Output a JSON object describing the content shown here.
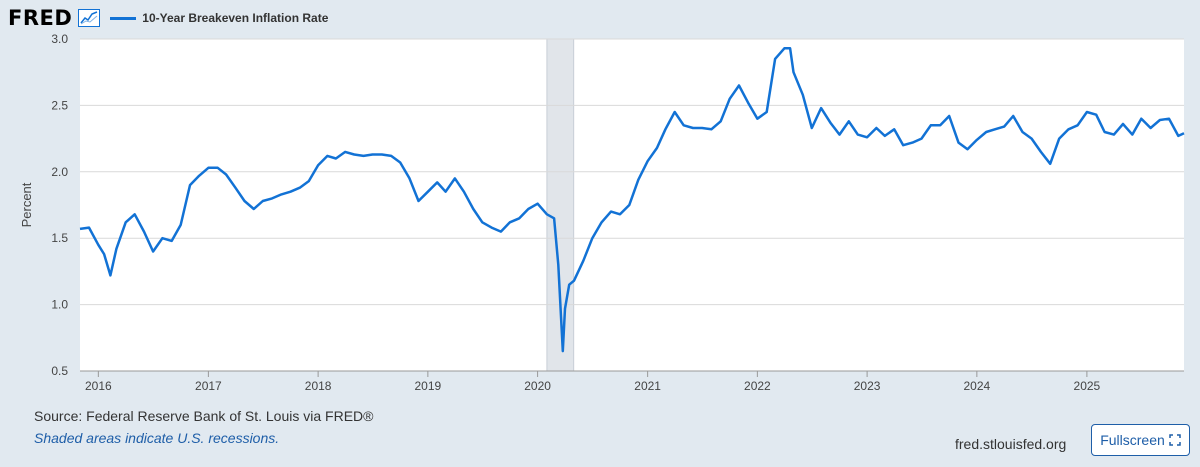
{
  "logo": {
    "text": "FRED"
  },
  "chart_data": {
    "type": "line",
    "title": "",
    "ylabel": "Percent",
    "ylim": [
      0.5,
      3.0
    ],
    "yticks": [
      "0.5",
      "1.0",
      "1.5",
      "2.0",
      "2.5",
      "3.0"
    ],
    "xticks": [
      "2016",
      "2017",
      "2018",
      "2019",
      "2020",
      "2021",
      "2022",
      "2023",
      "2024",
      "2025"
    ],
    "xlim": [
      "2015-11-01",
      "2025-11-20"
    ],
    "recession": {
      "start": "2020-02-01",
      "end": "2020-04-30"
    },
    "grid": true,
    "series": [
      {
        "name": "10-Year Breakeven Inflation Rate",
        "color": "#1272d5",
        "x": [
          "2015-11-01",
          "2015-12-01",
          "2016-01-01",
          "2016-01-20",
          "2016-02-10",
          "2016-03-01",
          "2016-04-01",
          "2016-05-01",
          "2016-06-01",
          "2016-07-01",
          "2016-08-01",
          "2016-09-01",
          "2016-10-01",
          "2016-11-01",
          "2016-12-01",
          "2017-01-01",
          "2017-02-01",
          "2017-03-01",
          "2017-04-01",
          "2017-05-01",
          "2017-06-01",
          "2017-07-01",
          "2017-08-01",
          "2017-09-01",
          "2017-10-01",
          "2017-11-01",
          "2017-12-01",
          "2018-01-01",
          "2018-02-01",
          "2018-03-01",
          "2018-04-01",
          "2018-05-01",
          "2018-06-01",
          "2018-07-01",
          "2018-08-01",
          "2018-09-01",
          "2018-10-01",
          "2018-11-01",
          "2018-12-01",
          "2019-01-01",
          "2019-02-01",
          "2019-03-01",
          "2019-04-01",
          "2019-05-01",
          "2019-06-01",
          "2019-07-01",
          "2019-08-01",
          "2019-09-01",
          "2019-10-01",
          "2019-11-01",
          "2019-12-01",
          "2020-01-01",
          "2020-02-01",
          "2020-02-25",
          "2020-03-10",
          "2020-03-19",
          "2020-03-25",
          "2020-04-01",
          "2020-04-15",
          "2020-05-01",
          "2020-06-01",
          "2020-07-01",
          "2020-08-01",
          "2020-09-01",
          "2020-10-01",
          "2020-11-01",
          "2020-12-01",
          "2021-01-01",
          "2021-02-01",
          "2021-03-01",
          "2021-04-01",
          "2021-05-01",
          "2021-06-01",
          "2021-07-01",
          "2021-08-01",
          "2021-09-01",
          "2021-10-01",
          "2021-11-01",
          "2021-12-01",
          "2022-01-01",
          "2022-02-01",
          "2022-03-01",
          "2022-04-01",
          "2022-04-20",
          "2022-05-01",
          "2022-06-01",
          "2022-07-01",
          "2022-08-01",
          "2022-09-01",
          "2022-10-01",
          "2022-11-01",
          "2022-12-01",
          "2023-01-01",
          "2023-02-01",
          "2023-03-01",
          "2023-04-01",
          "2023-05-01",
          "2023-06-01",
          "2023-07-01",
          "2023-08-01",
          "2023-09-01",
          "2023-10-01",
          "2023-11-01",
          "2023-12-01",
          "2024-01-01",
          "2024-02-01",
          "2024-03-01",
          "2024-04-01",
          "2024-05-01",
          "2024-06-01",
          "2024-07-01",
          "2024-08-01",
          "2024-09-01",
          "2024-10-01",
          "2024-11-01",
          "2024-12-01",
          "2025-01-01",
          "2025-02-01",
          "2025-03-01",
          "2025-04-01",
          "2025-05-01",
          "2025-06-01",
          "2025-07-01",
          "2025-08-01",
          "2025-09-01",
          "2025-10-01",
          "2025-11-01",
          "2025-11-20"
        ],
        "values": [
          1.57,
          1.58,
          1.45,
          1.38,
          1.22,
          1.42,
          1.62,
          1.68,
          1.55,
          1.4,
          1.5,
          1.48,
          1.6,
          1.9,
          1.97,
          2.03,
          2.03,
          1.98,
          1.88,
          1.78,
          1.72,
          1.78,
          1.8,
          1.83,
          1.85,
          1.88,
          1.93,
          2.05,
          2.12,
          2.1,
          2.15,
          2.13,
          2.12,
          2.13,
          2.13,
          2.12,
          2.07,
          1.95,
          1.78,
          1.85,
          1.92,
          1.85,
          1.95,
          1.85,
          1.72,
          1.62,
          1.58,
          1.55,
          1.62,
          1.65,
          1.72,
          1.76,
          1.68,
          1.65,
          1.3,
          0.91,
          0.65,
          0.97,
          1.15,
          1.18,
          1.33,
          1.5,
          1.62,
          1.7,
          1.68,
          1.75,
          1.94,
          2.08,
          2.18,
          2.32,
          2.45,
          2.35,
          2.33,
          2.33,
          2.32,
          2.38,
          2.55,
          2.65,
          2.52,
          2.4,
          2.45,
          2.85,
          2.93,
          2.93,
          2.75,
          2.58,
          2.33,
          2.48,
          2.37,
          2.28,
          2.38,
          2.28,
          2.26,
          2.33,
          2.27,
          2.32,
          2.2,
          2.22,
          2.25,
          2.35,
          2.35,
          2.42,
          2.22,
          2.17,
          2.24,
          2.3,
          2.32,
          2.34,
          2.42,
          2.3,
          2.25,
          2.15,
          2.06,
          2.25,
          2.32,
          2.35,
          2.45,
          2.43,
          2.3,
          2.28,
          2.36,
          2.28,
          2.4,
          2.33,
          2.39,
          2.4,
          2.27,
          2.29
        ]
      }
    ]
  },
  "footer": {
    "source": "Source: Federal Reserve Bank of St. Louis via FRED®",
    "recession_note": "Shaded areas indicate U.S. recessions.",
    "site": "fred.stlouisfed.org",
    "fullscreen_label": "Fullscreen"
  }
}
